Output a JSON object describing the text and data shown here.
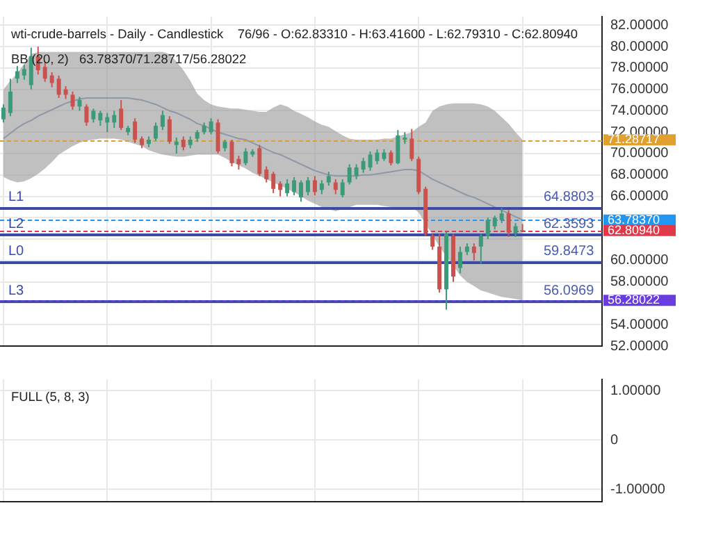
{
  "chart_data": [
    {
      "type": "candlestick",
      "title": "wti-crude-barrels - Daily - Candlestick    76/96 - O:62.83310 - H:63.41600 - L:62.79310 - C:62.80940",
      "subtitle": "BB (20, 2)   63.78370/71.28717/56.28022",
      "categories": [
        null,
        null,
        null,
        null,
        null,
        null,
        null,
        null,
        null,
        null,
        null,
        null,
        null,
        null,
        null,
        null,
        null,
        null,
        null,
        null,
        null,
        null,
        null,
        null,
        null,
        null,
        null,
        null,
        null,
        null,
        null,
        null,
        null,
        null,
        null,
        null,
        null,
        null,
        null,
        null,
        null,
        null,
        null,
        null,
        null,
        null,
        null,
        null,
        null,
        null,
        null,
        null,
        null,
        null,
        null,
        null,
        null,
        null,
        null,
        null,
        null,
        null,
        null,
        null,
        null,
        null,
        null,
        null,
        null,
        null,
        null,
        null,
        null,
        null,
        null,
        null,
        null,
        null,
        null,
        null,
        null,
        null,
        null,
        null,
        null,
        null,
        null
      ],
      "ohlc": [
        [
          73.2,
          74.6,
          72.9,
          74.3
        ],
        [
          73.8,
          77.0,
          73.5,
          75.8
        ],
        [
          77.0,
          78.2,
          76.6,
          77.7
        ],
        [
          77.3,
          78.3,
          76.9,
          77.9
        ],
        [
          76.4,
          79.9,
          76.0,
          79.1
        ],
        [
          79.1,
          80.0,
          77.4,
          77.8
        ],
        [
          78.1,
          78.6,
          76.7,
          77.0
        ],
        [
          77.3,
          77.6,
          76.2,
          76.6
        ],
        [
          77.0,
          77.3,
          75.2,
          75.5
        ],
        [
          76.0,
          76.3,
          75.1,
          75.5
        ],
        [
          75.5,
          75.8,
          74.1,
          74.4
        ],
        [
          74.4,
          75.3,
          74.0,
          75.0
        ],
        [
          74.4,
          74.6,
          72.6,
          72.9
        ],
        [
          73.2,
          74.2,
          72.9,
          74.0
        ],
        [
          73.1,
          74.0,
          72.6,
          73.8
        ],
        [
          72.9,
          73.8,
          72.0,
          73.4
        ],
        [
          72.9,
          74.0,
          72.4,
          73.6
        ],
        [
          74.2,
          75.0,
          72.2,
          72.4
        ],
        [
          72.0,
          72.6,
          71.7,
          72.4
        ],
        [
          73.0,
          73.3,
          71.0,
          71.3
        ],
        [
          71.4,
          71.6,
          70.5,
          70.8
        ],
        [
          70.9,
          71.6,
          70.6,
          71.3
        ],
        [
          71.4,
          72.9,
          71.2,
          72.6
        ],
        [
          72.5,
          74.0,
          72.2,
          73.6
        ],
        [
          73.2,
          73.5,
          70.9,
          71.1
        ],
        [
          70.8,
          71.5,
          70.0,
          71.1
        ],
        [
          71.3,
          71.6,
          70.3,
          70.6
        ],
        [
          70.8,
          71.6,
          70.5,
          71.3
        ],
        [
          71.4,
          72.2,
          71.1,
          72.0
        ],
        [
          72.0,
          72.9,
          71.8,
          72.6
        ],
        [
          72.0,
          73.3,
          71.8,
          73.0
        ],
        [
          72.9,
          73.2,
          70.0,
          70.2
        ],
        [
          70.5,
          71.3,
          70.2,
          71.1
        ],
        [
          71.1,
          71.3,
          68.8,
          69.1
        ],
        [
          69.5,
          69.8,
          68.5,
          69.0
        ],
        [
          69.1,
          70.5,
          68.9,
          70.2
        ],
        [
          69.9,
          70.4,
          69.7,
          70.2
        ],
        [
          70.5,
          70.8,
          67.9,
          68.1
        ],
        [
          68.5,
          68.8,
          67.3,
          67.6
        ],
        [
          68.1,
          68.3,
          66.3,
          66.7
        ],
        [
          67.2,
          67.4,
          66.0,
          66.6
        ],
        [
          66.3,
          67.6,
          66.0,
          67.2
        ],
        [
          66.4,
          67.8,
          66.1,
          67.5
        ],
        [
          65.9,
          67.5,
          65.5,
          67.3
        ],
        [
          66.4,
          67.8,
          66.1,
          67.5
        ],
        [
          67.5,
          67.9,
          66.1,
          66.4
        ],
        [
          66.6,
          67.5,
          66.2,
          67.2
        ],
        [
          67.3,
          68.3,
          67.0,
          67.9
        ],
        [
          67.3,
          67.6,
          66.2,
          66.6
        ],
        [
          66.1,
          67.6,
          65.9,
          67.3
        ],
        [
          67.3,
          69.0,
          67.1,
          68.7
        ],
        [
          67.9,
          69.0,
          67.6,
          68.7
        ],
        [
          68.5,
          69.6,
          68.2,
          69.3
        ],
        [
          68.7,
          70.2,
          68.4,
          69.9
        ],
        [
          69.3,
          70.4,
          69.0,
          70.1
        ],
        [
          69.5,
          70.4,
          69.3,
          70.1
        ],
        [
          70.1,
          70.3,
          68.9,
          69.1
        ],
        [
          69.1,
          72.2,
          69.0,
          71.7
        ],
        [
          71.3,
          72.0,
          70.9,
          71.5
        ],
        [
          71.4,
          72.3,
          69.3,
          69.5
        ],
        [
          69.5,
          69.7,
          66.2,
          66.4
        ],
        [
          66.7,
          66.9,
          62.3,
          62.5
        ],
        [
          62.3,
          62.5,
          61.0,
          61.3
        ],
        [
          61.3,
          62.5,
          57.0,
          57.3
        ],
        [
          57.3,
          62.7,
          55.4,
          62.5
        ],
        [
          62.3,
          62.5,
          58.0,
          58.5
        ],
        [
          59.3,
          61.3,
          58.8,
          60.8
        ],
        [
          60.8,
          61.6,
          60.5,
          61.3
        ],
        [
          61.3,
          61.6,
          60.0,
          60.7
        ],
        [
          61.3,
          62.5,
          59.7,
          62.3
        ],
        [
          62.3,
          64.0,
          62.0,
          63.8
        ],
        [
          63.2,
          64.2,
          62.9,
          64.0
        ],
        [
          63.8,
          64.9,
          63.5,
          64.4
        ],
        [
          64.4,
          64.7,
          62.2,
          62.6
        ],
        [
          62.5,
          63.5,
          62.2,
          63.2
        ],
        [
          62.8331,
          63.416,
          62.7931,
          62.8094
        ],
        null,
        null,
        null,
        null,
        null,
        null,
        null,
        null,
        null,
        null,
        null
      ],
      "colors": [
        "#3d9a78",
        "#3d9a78",
        "#3d9a78",
        "#3d9a78",
        "#3d9a78",
        "#c9524e",
        "#c9524e",
        "#c9524e",
        "#c9524e",
        "#c9524e",
        "#c9524e",
        "#3d9a78",
        "#c9524e",
        "#3d9a78",
        "#3d9a78",
        "#3d9a78",
        "#3d9a78",
        "#c9524e",
        "#3d9a78",
        "#c9524e",
        "#c9524e",
        "#3d9a78",
        "#3d9a78",
        "#3d9a78",
        "#c9524e",
        "#3d9a78",
        "#c9524e",
        "#3d9a78",
        "#3d9a78",
        "#3d9a78",
        "#3d9a78",
        "#c9524e",
        "#3d9a78",
        "#c9524e",
        "#c9524e",
        "#3d9a78",
        "#3d9a78",
        "#c9524e",
        "#c9524e",
        "#c9524e",
        "#c9524e",
        "#3d9a78",
        "#3d9a78",
        "#3d9a78",
        "#3d9a78",
        "#c9524e",
        "#3d9a78",
        "#3d9a78",
        "#c9524e",
        "#3d9a78",
        "#3d9a78",
        "#3d9a78",
        "#3d9a78",
        "#3d9a78",
        "#3d9a78",
        "#3d9a78",
        "#c9524e",
        "#3d9a78",
        "#3d9a78",
        "#c9524e",
        "#c9524e",
        "#c9524e",
        "#c9524e",
        "#c9524e",
        "#3d9a78",
        "#c9524e",
        "#3d9a78",
        "#3d9a78",
        "#c9524e",
        "#3d9a78",
        "#3d9a78",
        "#3d9a78",
        "#3d9a78",
        "#c9524e",
        "#3d9a78",
        "#c9524e",
        null,
        null,
        null,
        null,
        null,
        null,
        null,
        null,
        null,
        null,
        null
      ],
      "series": [
        {
          "type": "line",
          "color": "#7f9abb",
          "values": [
            71.4,
            71.9,
            72.4,
            72.8,
            73.1,
            73.5,
            73.8,
            74.1,
            74.4,
            74.7,
            74.9,
            75.1,
            75.2,
            75.2,
            75.2,
            75.2,
            75.2,
            75.2,
            75.2,
            75.1,
            75.0,
            74.8,
            74.6,
            74.3,
            74.0,
            73.8,
            73.5,
            73.2,
            72.8,
            72.6,
            72.3,
            72.0,
            71.8,
            71.6,
            71.4,
            71.3,
            71.0,
            70.7,
            70.4,
            70.1,
            69.9,
            69.6,
            69.3,
            69.0,
            68.7,
            68.4,
            68.2,
            68.0,
            67.9,
            67.9,
            67.9,
            67.9,
            68.0,
            68.0,
            68.1,
            68.2,
            68.3,
            68.4,
            68.5,
            68.5,
            68.4,
            68.0,
            67.6,
            67.3,
            67.0,
            66.7,
            66.4,
            66.1,
            65.9,
            65.6,
            65.3,
            65.0,
            64.7,
            64.4,
            64.1,
            63.7837,
            null,
            null,
            null,
            null,
            null,
            null,
            null,
            null,
            null,
            null,
            null
          ],
          "upper": [
            76.0,
            76.8,
            77.5,
            78.4,
            79.3,
            79.5,
            79.5,
            79.5,
            79.5,
            79.5,
            79.5,
            79.5,
            79.5,
            79.5,
            79.5,
            79.5,
            79.5,
            79.5,
            79.5,
            79.5,
            79.5,
            79.5,
            79.5,
            79.5,
            79.3,
            78.6,
            77.8,
            76.8,
            75.6,
            75.0,
            74.6,
            74.4,
            74.3,
            74.2,
            74.2,
            74.1,
            74.0,
            73.9,
            73.9,
            74.3,
            74.6,
            74.4,
            74.0,
            73.7,
            73.4,
            73.0,
            72.7,
            72.5,
            72.1,
            71.7,
            71.4,
            71.3,
            71.3,
            71.3,
            71.3,
            71.4,
            71.4,
            71.6,
            71.8,
            72.0,
            72.5,
            72.9,
            74.0,
            74.4,
            74.6,
            74.7,
            74.7,
            74.7,
            74.7,
            74.6,
            74.4,
            74.0,
            73.4,
            72.8,
            72.0,
            71.28717,
            null,
            null,
            null,
            null,
            null,
            null,
            null,
            null,
            null,
            null,
            null
          ],
          "lower": [
            67.8,
            67.5,
            67.3,
            67.4,
            67.7,
            68.1,
            68.6,
            69.2,
            69.9,
            70.3,
            70.7,
            71.0,
            71.2,
            71.3,
            71.4,
            71.4,
            71.4,
            71.3,
            71.1,
            70.9,
            70.7,
            70.3,
            70.1,
            69.9,
            69.8,
            69.7,
            69.7,
            69.8,
            69.9,
            69.9,
            69.9,
            69.9,
            69.6,
            69.2,
            68.9,
            68.6,
            68.2,
            67.9,
            67.6,
            67.3,
            67.0,
            66.7,
            66.4,
            66.0,
            65.6,
            65.3,
            65.0,
            64.8,
            64.6,
            64.8,
            65.0,
            65.2,
            65.2,
            65.2,
            65.2,
            65.1,
            65.0,
            65.0,
            65.0,
            65.0,
            64.5,
            63.4,
            62.4,
            61.3,
            60.4,
            59.5,
            58.6,
            58.0,
            57.6,
            57.2,
            57.0,
            56.8,
            56.6,
            56.5,
            56.4,
            56.28022,
            null,
            null,
            null,
            null,
            null,
            null,
            null,
            null,
            null,
            null,
            null
          ]
        }
      ],
      "ylim": [
        52,
        82.8
      ],
      "yticks": [
        {
          "value": 52,
          "label": "52.00000"
        },
        {
          "value": 54,
          "label": "54.00000"
        },
        {
          "value": 56,
          "label": null
        },
        {
          "value": 58,
          "label": "58.00000"
        },
        {
          "value": 60,
          "label": "60.00000"
        },
        {
          "value": 62,
          "label": null
        },
        {
          "value": 64,
          "label": null
        },
        {
          "value": 66,
          "label": "66.00000"
        },
        {
          "value": 68,
          "label": "68.00000"
        },
        {
          "value": 70,
          "label": "70.00000"
        },
        {
          "value": 72,
          "label": "72.00000"
        },
        {
          "value": 74,
          "label": "74.00000"
        },
        {
          "value": 76,
          "label": "76.00000"
        },
        {
          "value": 78,
          "label": "78.00000"
        },
        {
          "value": 80,
          "label": "80.00000"
        },
        {
          "value": 82,
          "label": "82.00000"
        }
      ],
      "ref_lines": [
        {
          "axis": "y",
          "value": 64.8803,
          "label": "L1",
          "color": "#3b4aa8",
          "line_style": "solid"
        },
        {
          "axis": "y",
          "value": 62.3593,
          "label": "L2",
          "color": "#3b4aa8",
          "line_style": "solid"
        },
        {
          "axis": "y",
          "value": 59.8473,
          "label": "L0",
          "color": "#3b4aa8",
          "line_style": "solid"
        },
        {
          "axis": "y",
          "value": 56.0969,
          "label": "L3",
          "color": "#3b4aa8",
          "line_style": "solid"
        },
        {
          "axis": "y",
          "value": 71.28717,
          "label": "71.28717",
          "color": "#e0a030",
          "line_style": "dashed"
        },
        {
          "axis": "y",
          "value": 63.7837,
          "label": "63.78370",
          "color": "#2196f3",
          "line_style": "dashed"
        },
        {
          "axis": "y",
          "value": 62.8094,
          "label": "62.80940",
          "color": "#e03a4a",
          "line_style": "dashed"
        },
        {
          "axis": "y",
          "value": 56.28022,
          "label": "56.28022",
          "color": "#6a3de0",
          "line_style": "dashed"
        }
      ],
      "annotations": [
        {
          "text": "64.8803",
          "y": 64.8803
        },
        {
          "text": "62.3593",
          "y": 62.3593
        },
        {
          "text": "59.8473",
          "y": 59.8473
        },
        {
          "text": "56.0969",
          "y": 56.0969
        }
      ],
      "grid": true,
      "tick_labels": "y"
    },
    {
      "type": "line",
      "title": "FULL (5, 8, 3)",
      "categories": [
        null,
        null,
        null,
        null,
        null,
        null,
        null,
        null,
        null,
        null,
        null,
        null,
        null,
        null,
        null,
        null,
        null,
        null,
        null,
        null,
        null,
        null,
        null,
        null,
        null,
        null,
        null,
        null,
        null,
        null,
        null,
        null,
        null,
        null,
        null,
        null,
        null,
        null,
        null,
        null,
        null,
        null,
        null,
        null,
        null,
        null,
        null,
        null,
        null,
        null,
        null,
        null,
        null,
        null,
        null,
        null,
        null,
        null,
        null,
        null,
        null,
        null,
        null,
        null,
        null,
        null,
        null,
        null,
        null,
        null,
        null,
        null,
        null,
        null,
        null,
        null,
        null,
        null,
        null,
        null,
        null,
        null,
        null,
        null,
        null,
        null,
        null
      ],
      "ylim": [
        -1.25,
        1.23
      ],
      "yticks": [
        {
          "value": -1,
          "label": "-1.00000"
        },
        0,
        {
          "value": 1,
          "label": "1.00000"
        }
      ],
      "grid": true,
      "tick_labels": "y"
    }
  ]
}
